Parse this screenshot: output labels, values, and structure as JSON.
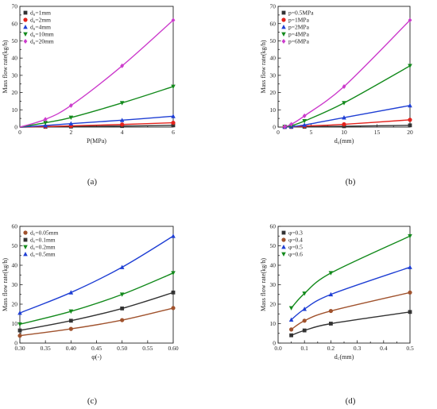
{
  "chart_data": [
    {
      "type": "line",
      "panel_label": "(a)",
      "xlabel": "P(MPa)",
      "ylabel": "Mass flow rate(kg/h)",
      "xlim": [
        0,
        6
      ],
      "ylim": [
        0,
        70
      ],
      "xticks": [
        "0",
        "2",
        "4",
        "6"
      ],
      "xtick_values": [
        0,
        2,
        4,
        6
      ],
      "xminor": [
        1,
        3,
        5
      ],
      "yticks": [
        "0",
        "10",
        "20",
        "30",
        "40",
        "50",
        "60",
        "70"
      ],
      "ytick_values": [
        0,
        10,
        20,
        30,
        40,
        50,
        60,
        70
      ],
      "legend_position": "top-left",
      "series": [
        {
          "name": "d₀=1mm",
          "color": "#333333",
          "marker": "square",
          "x": [
            0,
            1,
            2,
            4,
            6
          ],
          "y": [
            0,
            0.15,
            0.3,
            0.6,
            1.0
          ]
        },
        {
          "name": "d₀=2mm",
          "color": "#e3221c",
          "marker": "circle",
          "x": [
            0,
            1,
            2,
            4,
            6
          ],
          "y": [
            0,
            0.3,
            0.7,
            1.5,
            2.5
          ]
        },
        {
          "name": "d₀=4mm",
          "color": "#1f3fd4",
          "marker": "triangle-up",
          "x": [
            0,
            1,
            2,
            4,
            6
          ],
          "y": [
            0,
            0.9,
            2.0,
            4.0,
            6.3
          ]
        },
        {
          "name": "d₀=10mm",
          "color": "#138a1c",
          "marker": "triangle-down",
          "x": [
            0,
            1,
            2,
            4,
            6
          ],
          "y": [
            0,
            2.5,
            5.5,
            14.0,
            23.5
          ]
        },
        {
          "name": "d₀=20mm",
          "color": "#cc3ccc",
          "marker": "diamond",
          "x": [
            0,
            1,
            2,
            4,
            6
          ],
          "y": [
            0,
            4.5,
            12.5,
            35.5,
            62.0
          ]
        }
      ]
    },
    {
      "type": "line",
      "panel_label": "(b)",
      "xlabel": "d₀(mm)",
      "ylabel": "Mass flow rate(kg/h)",
      "xlim": [
        0,
        20
      ],
      "ylim": [
        0,
        70
      ],
      "xticks": [
        "0",
        "5",
        "10",
        "15",
        "20"
      ],
      "xtick_values": [
        0,
        5,
        10,
        15,
        20
      ],
      "xminor": [
        2.5,
        7.5,
        12.5,
        17.5
      ],
      "yticks": [
        "0",
        "10",
        "20",
        "30",
        "40",
        "50",
        "60",
        "70"
      ],
      "ytick_values": [
        0,
        10,
        20,
        30,
        40,
        50,
        60,
        70
      ],
      "legend_position": "top-left",
      "series": [
        {
          "name": "p=0.5MPa",
          "color": "#333333",
          "marker": "square",
          "x": [
            1,
            2,
            4,
            10,
            20
          ],
          "y": [
            0.05,
            0.1,
            0.2,
            0.5,
            1.0
          ]
        },
        {
          "name": "p=1MPa",
          "color": "#e3221c",
          "marker": "circle",
          "x": [
            1,
            2,
            4,
            10,
            20
          ],
          "y": [
            0.05,
            0.15,
            0.6,
            1.6,
            4.2
          ]
        },
        {
          "name": "p=2MPa",
          "color": "#1f3fd4",
          "marker": "triangle-up",
          "x": [
            1,
            2,
            4,
            10,
            20
          ],
          "y": [
            0.1,
            0.3,
            1.2,
            5.5,
            12.5
          ]
        },
        {
          "name": "p=4MPa",
          "color": "#138a1c",
          "marker": "triangle-down",
          "x": [
            1,
            2,
            4,
            10,
            20
          ],
          "y": [
            0.2,
            0.8,
            3.5,
            14.0,
            35.5
          ]
        },
        {
          "name": "p=6MPa",
          "color": "#cc3ccc",
          "marker": "diamond",
          "x": [
            1,
            2,
            4,
            10,
            20
          ],
          "y": [
            0.3,
            1.6,
            6.5,
            23.5,
            62.0
          ]
        }
      ]
    },
    {
      "type": "line",
      "panel_label": "(c)",
      "xlabel": "φ(-)",
      "ylabel": "Mass flow rate(kg/h)",
      "xlim": [
        0.3,
        0.6
      ],
      "ylim": [
        0,
        60
      ],
      "xticks": [
        "0.30",
        "0.35",
        "0.40",
        "0.45",
        "0.50",
        "0.55",
        "0.60"
      ],
      "xtick_values": [
        0.3,
        0.35,
        0.4,
        0.45,
        0.5,
        0.55,
        0.6
      ],
      "xminor": [],
      "yticks": [
        "0",
        "10",
        "20",
        "30",
        "40",
        "50",
        "60"
      ],
      "ytick_values": [
        0,
        10,
        20,
        30,
        40,
        50,
        60
      ],
      "legend_position": "top-left",
      "series": [
        {
          "name": "d꜀=0.05mm",
          "color": "#a0522d",
          "marker": "circle",
          "x": [
            0.3,
            0.4,
            0.5,
            0.6
          ],
          "y": [
            3.8,
            7.3,
            11.8,
            18.0
          ]
        },
        {
          "name": "d꜀=0.1mm",
          "color": "#333333",
          "marker": "square",
          "x": [
            0.3,
            0.4,
            0.5,
            0.6
          ],
          "y": [
            6.5,
            11.5,
            17.8,
            26.0
          ]
        },
        {
          "name": "d꜀=0.2mm",
          "color": "#138a1c",
          "marker": "triangle-down",
          "x": [
            0.3,
            0.4,
            0.5,
            0.6
          ],
          "y": [
            9.7,
            16.3,
            25.0,
            36.0
          ]
        },
        {
          "name": "d꜀=0.5mm",
          "color": "#1f3fd4",
          "marker": "triangle-up",
          "x": [
            0.3,
            0.4,
            0.5,
            0.6
          ],
          "y": [
            15.5,
            26.0,
            39.0,
            55.0
          ]
        }
      ]
    },
    {
      "type": "line",
      "panel_label": "(d)",
      "xlabel": "d꜀(mm)",
      "ylabel": "Mass flow rate(kg/h)",
      "xlim": [
        0,
        0.5
      ],
      "ylim": [
        0,
        60
      ],
      "xticks": [
        "0.0",
        "0.1",
        "0.2",
        "0.3",
        "0.4",
        "0.5"
      ],
      "xtick_values": [
        0,
        0.1,
        0.2,
        0.3,
        0.4,
        0.5
      ],
      "xminor": [
        0.05,
        0.15,
        0.25,
        0.35,
        0.45
      ],
      "yticks": [
        "0",
        "10",
        "20",
        "30",
        "40",
        "50",
        "60"
      ],
      "ytick_values": [
        0,
        10,
        20,
        30,
        40,
        50,
        60
      ],
      "legend_position": "top-left",
      "series": [
        {
          "name": "φ=0.3",
          "color": "#333333",
          "marker": "square",
          "x": [
            0.05,
            0.1,
            0.2,
            0.5
          ],
          "y": [
            4.0,
            6.5,
            10.0,
            16.0
          ]
        },
        {
          "name": "φ=0.4",
          "color": "#a0522d",
          "marker": "circle",
          "x": [
            0.05,
            0.1,
            0.2,
            0.5
          ],
          "y": [
            7.0,
            11.5,
            16.5,
            26.0
          ]
        },
        {
          "name": "φ=0.5",
          "color": "#1f3fd4",
          "marker": "triangle-up",
          "x": [
            0.05,
            0.1,
            0.2,
            0.5
          ],
          "y": [
            12.0,
            17.5,
            25.0,
            39.0
          ]
        },
        {
          "name": "φ=0.6",
          "color": "#138a1c",
          "marker": "triangle-down",
          "x": [
            0.05,
            0.1,
            0.2,
            0.5
          ],
          "y": [
            18.0,
            25.5,
            36.0,
            55.0
          ]
        }
      ]
    }
  ]
}
